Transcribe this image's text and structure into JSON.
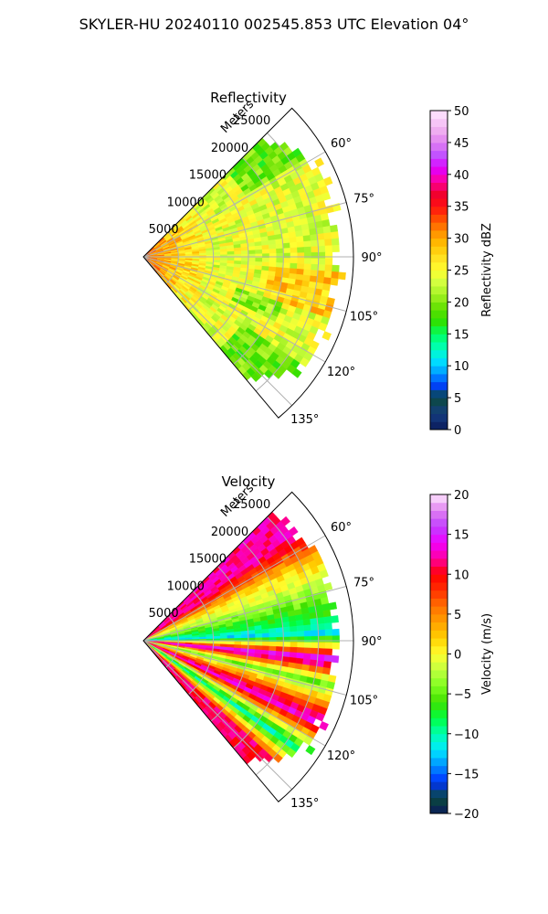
{
  "figure": {
    "suptitle": "SKYLER-HU  20240110  002545.853 UTC Elevation 04°"
  },
  "chart_data": [
    {
      "type": "heatmap",
      "subtype": "polar-sector (radar PPI)",
      "title": "Reflectivity",
      "radial_axis_label": "Meters",
      "radial_ticks": [
        "5000",
        "10000",
        "15000",
        "20000",
        "25000"
      ],
      "radial_tick_values": [
        5000,
        10000,
        15000,
        20000,
        25000
      ],
      "rlim": [
        0,
        30000
      ],
      "azimuth_range_deg": [
        45,
        140
      ],
      "azimuth_ticks": [
        "60°",
        "75°",
        "90°",
        "105°",
        "120°",
        "135°"
      ],
      "azimuth_tick_values": [
        60,
        75,
        90,
        105,
        120,
        135
      ],
      "grid": true,
      "colorbar": {
        "label": "Reflectivity dBZ",
        "range": [
          0,
          50
        ],
        "ticks": [
          "0",
          "5",
          "10",
          "15",
          "20",
          "25",
          "30",
          "35",
          "40",
          "45",
          "50"
        ],
        "tick_values": [
          0,
          5,
          10,
          15,
          20,
          25,
          30,
          35,
          40,
          45,
          50
        ]
      },
      "field_summary": {
        "dominant_range": [
          20,
          30
        ],
        "near_radar_max": 35,
        "typical_value": 25
      }
    },
    {
      "type": "heatmap",
      "subtype": "polar-sector (radar PPI)",
      "title": "Velocity",
      "radial_axis_label": "Meters",
      "radial_ticks": [
        "5000",
        "10000",
        "15000",
        "20000",
        "25000"
      ],
      "radial_tick_values": [
        5000,
        10000,
        15000,
        20000,
        25000
      ],
      "rlim": [
        0,
        30000
      ],
      "azimuth_range_deg": [
        45,
        140
      ],
      "azimuth_ticks": [
        "60°",
        "75°",
        "90°",
        "105°",
        "120°",
        "135°"
      ],
      "azimuth_tick_values": [
        60,
        75,
        90,
        105,
        120,
        135
      ],
      "grid": true,
      "colorbar": {
        "label": "Velocity (m/s)",
        "range": [
          -20,
          20
        ],
        "ticks": [
          "−20",
          "−15",
          "−10",
          "−5",
          "0",
          "5",
          "10",
          "15",
          "20"
        ],
        "tick_values": [
          -20,
          -15,
          -10,
          -5,
          0,
          5,
          10,
          15,
          20
        ]
      },
      "field_summary": {
        "bands": [
          {
            "azimuth_deg": 55,
            "value": 12
          },
          {
            "azimuth_deg": 65,
            "value": 2
          },
          {
            "azimuth_deg": 80,
            "value": -6
          },
          {
            "azimuth_deg": 88,
            "value": -12
          },
          {
            "azimuth_deg": 96,
            "value": 16
          },
          {
            "azimuth_deg": 103,
            "value": -5
          },
          {
            "azimuth_deg": 115,
            "value": 14
          },
          {
            "azimuth_deg": 125,
            "value": -10
          },
          {
            "azimuth_deg": 133,
            "value": 11
          }
        ]
      }
    }
  ]
}
